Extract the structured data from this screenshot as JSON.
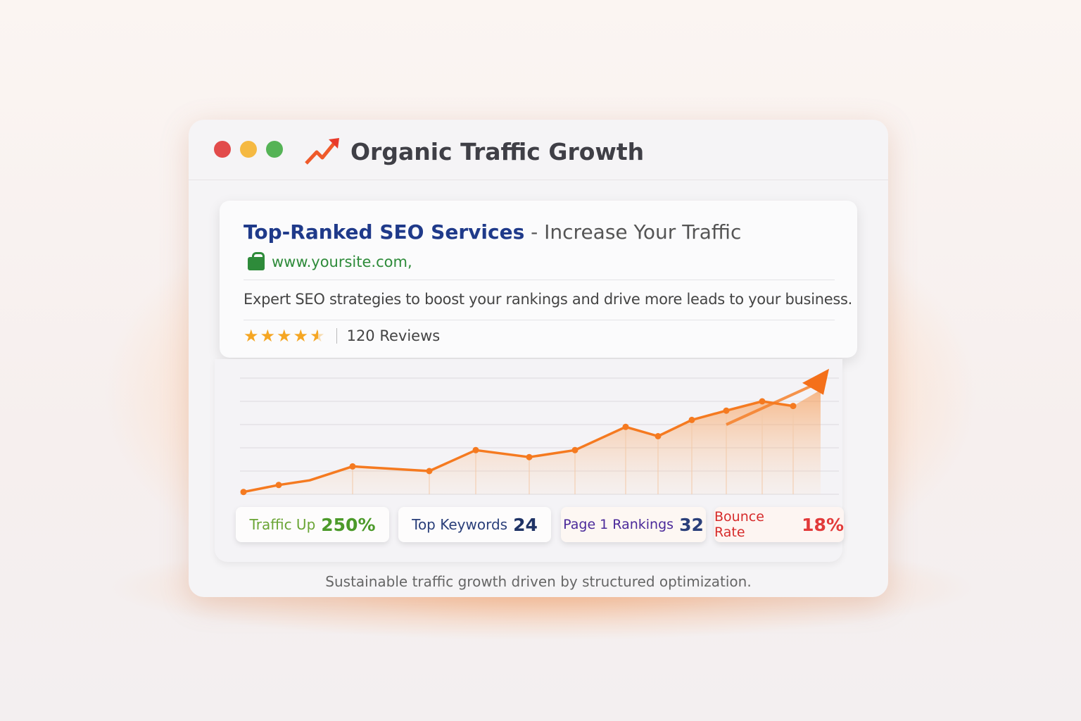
{
  "window": {
    "title": "Organic Traffic Growth",
    "controls": {
      "close": "#e24b4b",
      "minimize": "#f5b942",
      "maximize": "#55b356"
    },
    "title_icon": "trending-up-arrow-icon"
  },
  "result": {
    "headline": "Top-Ranked SEO Services",
    "headline_suffix": "- Increase Your Traffic",
    "url": "www.yoursite.com,",
    "url_icon": "lock-icon",
    "description": "Expert SEO strategies to boost your rankings and drive more leads to your business.",
    "rating": 4.5,
    "rating_max": 5,
    "reviews": "120 Reviews"
  },
  "stats": [
    {
      "label": "Traffic Up",
      "value": "250%",
      "label_color": "#6aa535",
      "value_color": "#4c9a2a"
    },
    {
      "label": "Top Keywords",
      "value": "24",
      "label_color": "#2a3f7a",
      "value_color": "#1f3366"
    },
    {
      "label": "Page 1 Rankings",
      "value": "32",
      "label_color": "#4b2a9a",
      "value_color": "#2a3f7a"
    },
    {
      "label": "Bounce Rate",
      "value": "18%",
      "label_color": "#d62b2b",
      "value_color": "#e23a3a"
    }
  ],
  "footer": "Sustainable traffic growth driven by structured optimization.",
  "chart_data": {
    "type": "line",
    "values": [
      0.1,
      0.4,
      0.6,
      1.2,
      1.0,
      1.9,
      1.6,
      1.9,
      2.9,
      2.5,
      3.2,
      3.6,
      4.0,
      3.8
    ],
    "trend_arrow_end": 5.4,
    "ylim": [
      0,
      5
    ],
    "grid": true,
    "color": "#f57a20"
  }
}
